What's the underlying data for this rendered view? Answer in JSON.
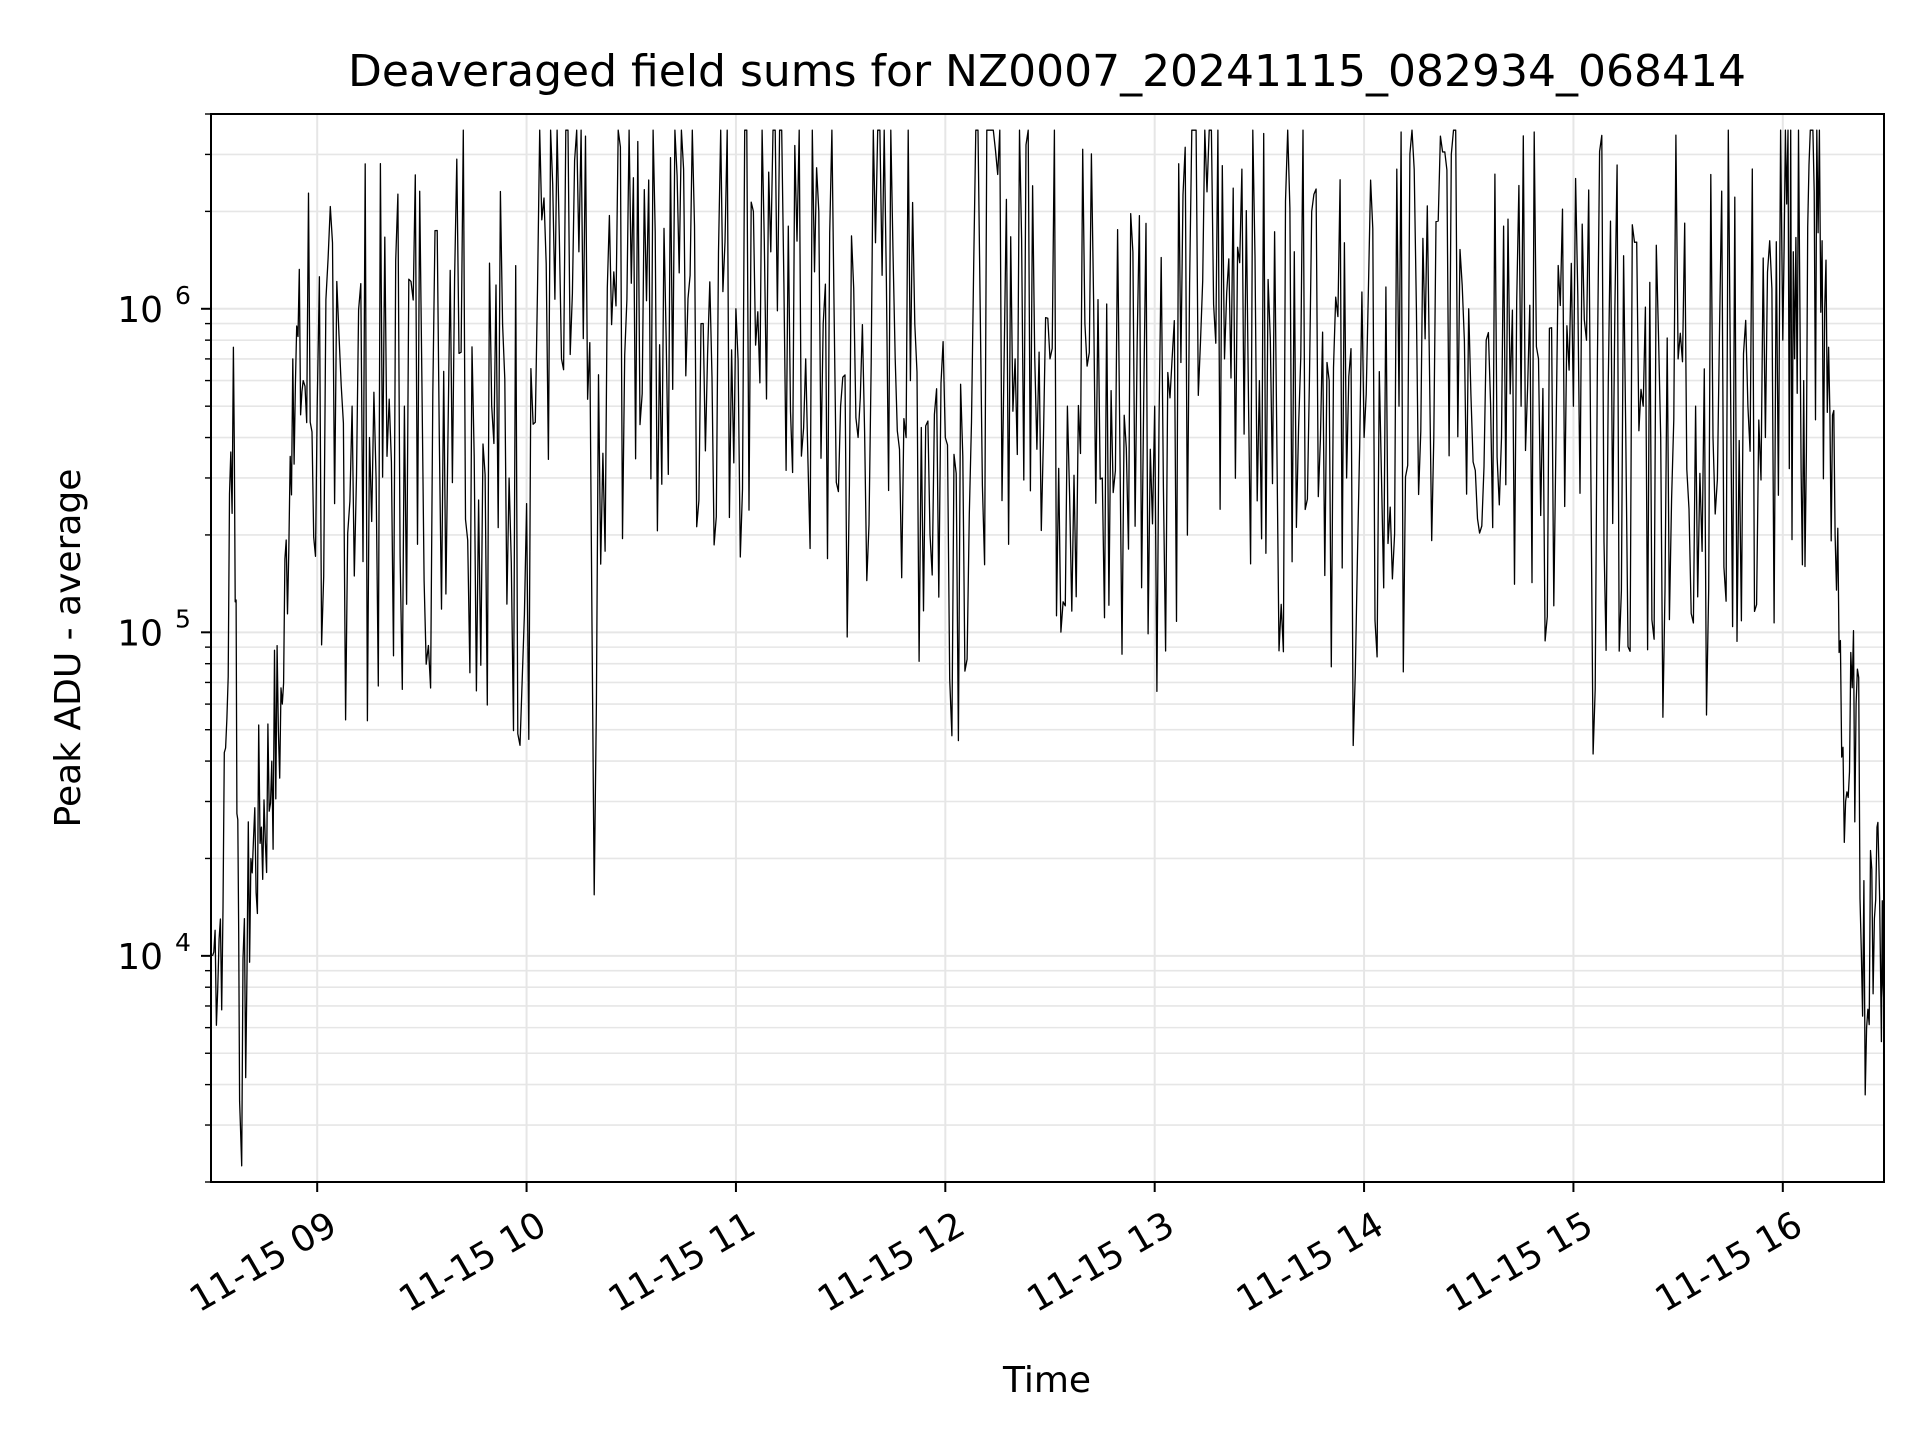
{
  "chart_data": {
    "type": "line",
    "title": "Deaveraged field sums for NZ0007_20241115_082934_068414",
    "xlabel": "Time",
    "ylabel": "Peak ADU - average",
    "yscale": "log",
    "ylim": [
      2000,
      4000000
    ],
    "xlim": [
      "2024-11-15 08:29:34",
      "2024-11-15 16:29:00"
    ],
    "grid": true,
    "line_color": "#000000",
    "grid_color": "#e6e6e6",
    "x_ticks": [
      {
        "value": "2024-11-15 09:00",
        "label": "11-15 09"
      },
      {
        "value": "2024-11-15 10:00",
        "label": "11-15 10"
      },
      {
        "value": "2024-11-15 11:00",
        "label": "11-15 11"
      },
      {
        "value": "2024-11-15 12:00",
        "label": "11-15 12"
      },
      {
        "value": "2024-11-15 13:00",
        "label": "11-15 13"
      },
      {
        "value": "2024-11-15 14:00",
        "label": "11-15 14"
      },
      {
        "value": "2024-11-15 15:00",
        "label": "11-15 15"
      },
      {
        "value": "2024-11-15 16:00",
        "label": "11-15 16"
      }
    ],
    "y_ticks": [
      {
        "value": 10000,
        "base": "10",
        "exp": "4"
      },
      {
        "value": 100000,
        "base": "10",
        "exp": "5"
      },
      {
        "value": 1000000,
        "base": "10",
        "exp": "6"
      }
    ],
    "series": [
      {
        "x": [
          "2024-11-15 08:30",
          "2024-11-15 08:33",
          "2024-11-15 08:36",
          "2024-11-15 08:38",
          "2024-11-15 08:41",
          "2024-11-15 08:44",
          "2024-11-15 08:47",
          "2024-11-15 08:50",
          "2024-11-15 08:53",
          "2024-11-15 08:56",
          "2024-11-15 09:00",
          "2024-11-15 09:05",
          "2024-11-15 09:10",
          "2024-11-15 09:15",
          "2024-11-15 09:20",
          "2024-11-15 09:25",
          "2024-11-15 09:30",
          "2024-11-15 09:35",
          "2024-11-15 09:40",
          "2024-11-15 09:45",
          "2024-11-15 09:50",
          "2024-11-15 09:55",
          "2024-11-15 10:00",
          "2024-11-15 10:05",
          "2024-11-15 10:10",
          "2024-11-15 10:15",
          "2024-11-15 10:20",
          "2024-11-15 10:25",
          "2024-11-15 10:30",
          "2024-11-15 10:35",
          "2024-11-15 10:40",
          "2024-11-15 10:45",
          "2024-11-15 10:50",
          "2024-11-15 10:55",
          "2024-11-15 11:00",
          "2024-11-15 11:05",
          "2024-11-15 11:10",
          "2024-11-15 11:15",
          "2024-11-15 11:20",
          "2024-11-15 11:25",
          "2024-11-15 11:30",
          "2024-11-15 11:35",
          "2024-11-15 11:40",
          "2024-11-15 11:45",
          "2024-11-15 11:50",
          "2024-11-15 11:55",
          "2024-11-15 12:00",
          "2024-11-15 12:05",
          "2024-11-15 12:10",
          "2024-11-15 12:15",
          "2024-11-15 12:20",
          "2024-11-15 12:25",
          "2024-11-15 12:30",
          "2024-11-15 12:35",
          "2024-11-15 12:40",
          "2024-11-15 12:45",
          "2024-11-15 12:50",
          "2024-11-15 12:55",
          "2024-11-15 13:00",
          "2024-11-15 13:05",
          "2024-11-15 13:10",
          "2024-11-15 13:15",
          "2024-11-15 13:20",
          "2024-11-15 13:25",
          "2024-11-15 13:30",
          "2024-11-15 13:35",
          "2024-11-15 13:40",
          "2024-11-15 13:45",
          "2024-11-15 13:50",
          "2024-11-15 13:55",
          "2024-11-15 14:00",
          "2024-11-15 14:05",
          "2024-11-15 14:10",
          "2024-11-15 14:15",
          "2024-11-15 14:20",
          "2024-11-15 14:25",
          "2024-11-15 14:30",
          "2024-11-15 14:35",
          "2024-11-15 14:40",
          "2024-11-15 14:45",
          "2024-11-15 14:50",
          "2024-11-15 14:55",
          "2024-11-15 15:00",
          "2024-11-15 15:05",
          "2024-11-15 15:10",
          "2024-11-15 15:15",
          "2024-11-15 15:20",
          "2024-11-15 15:25",
          "2024-11-15 15:30",
          "2024-11-15 15:35",
          "2024-11-15 15:40",
          "2024-11-15 15:45",
          "2024-11-15 15:50",
          "2024-11-15 15:55",
          "2024-11-15 16:00",
          "2024-11-15 16:03",
          "2024-11-15 16:06",
          "2024-11-15 16:09",
          "2024-11-15 16:12",
          "2024-11-15 16:15",
          "2024-11-15 16:18",
          "2024-11-15 16:21",
          "2024-11-15 16:24",
          "2024-11-15 16:27",
          "2024-11-15 16:29"
        ],
        "y": [
          10000,
          14000,
          760000,
          3000,
          20000,
          25000,
          40000,
          60000,
          700000,
          600000,
          500000,
          250000,
          500000,
          400000,
          350000,
          500000,
          600000,
          400000,
          2900000,
          350000,
          500000,
          300000,
          250000,
          2200000,
          700000,
          1500000,
          60000,
          1300000,
          1200000,
          2500000,
          800000,
          2700000,
          900000,
          1500000,
          1000000,
          2000000,
          1500000,
          1800000,
          700000,
          900000,
          500000,
          400000,
          1600000,
          1500000,
          600000,
          450000,
          400000,
          350000,
          1000000,
          2600000,
          700000,
          2400000,
          700000,
          500000,
          900000,
          300000,
          400000,
          800000,
          500000,
          700000,
          1200000,
          2300000,
          700000,
          2700000,
          600000,
          400000,
          1500000,
          2000000,
          600000,
          300000,
          400000,
          300000,
          500000,
          1000000,
          400000,
          3000000,
          1000000,
          800000,
          1800000,
          500000,
          700000,
          400000,
          500000,
          300000,
          600000,
          400000,
          500000,
          400000,
          700000,
          500000,
          400000,
          600000,
          500000,
          400000,
          800000,
          1500000,
          600000,
          2300000,
          1000000,
          200000,
          30000,
          60000,
          6000,
          25000,
          7000
        ]
      }
    ]
  }
}
